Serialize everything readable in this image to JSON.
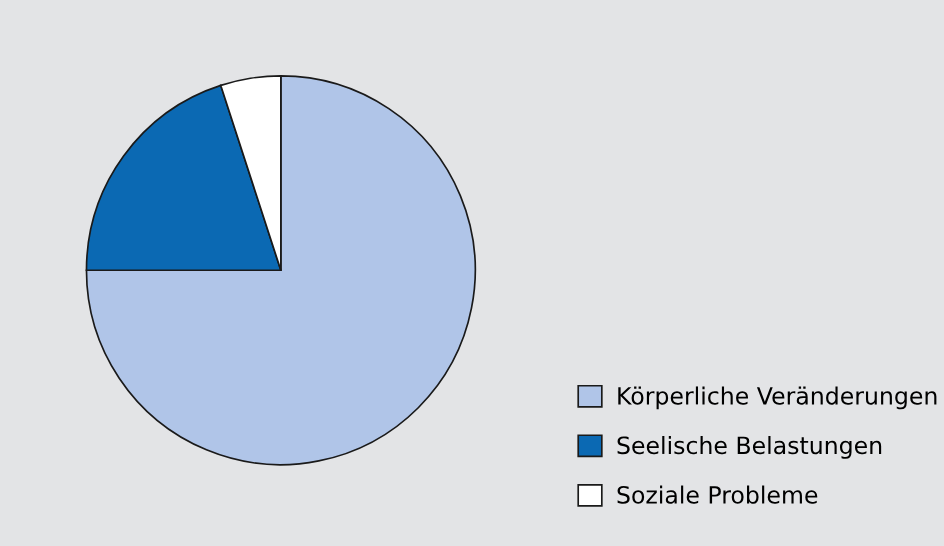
{
  "chart_data": {
    "type": "pie",
    "categories": [
      "Körperliche Veränderungen",
      "Seelische Belastungen",
      "Soziale Probleme"
    ],
    "values": [
      75,
      20,
      5
    ],
    "colors": [
      "#b0c5e8",
      "#0b69b3",
      "#ffffff"
    ],
    "legend": "bottom right"
  }
}
